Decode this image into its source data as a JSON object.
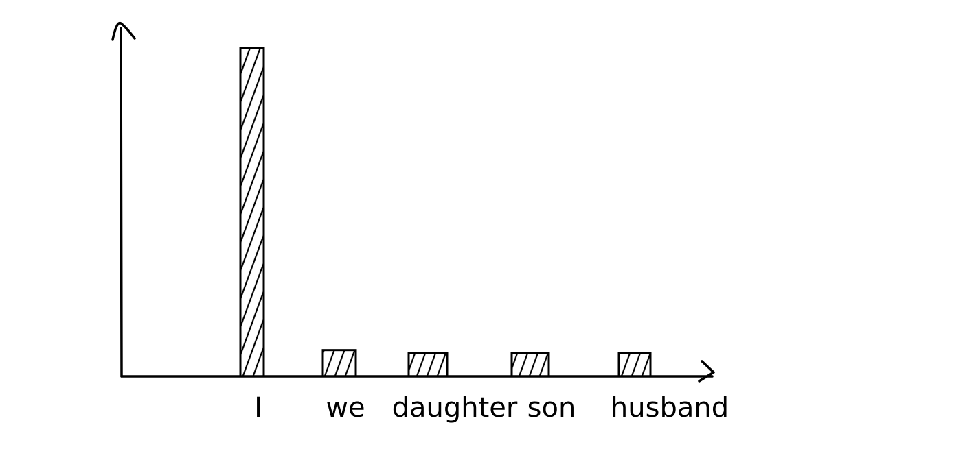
{
  "chart_data": {
    "type": "bar",
    "categories": [
      "I",
      "we",
      "daughter",
      "son",
      "husband"
    ],
    "values": [
      100,
      8,
      7,
      7,
      7
    ],
    "ylim": [
      0,
      100
    ],
    "title": "",
    "xlabel": "",
    "ylabel": "",
    "grid": false,
    "legend": "none",
    "bar_fill": "hatched",
    "colors": {
      "ink": "#000000",
      "background": "#ffffff"
    }
  }
}
